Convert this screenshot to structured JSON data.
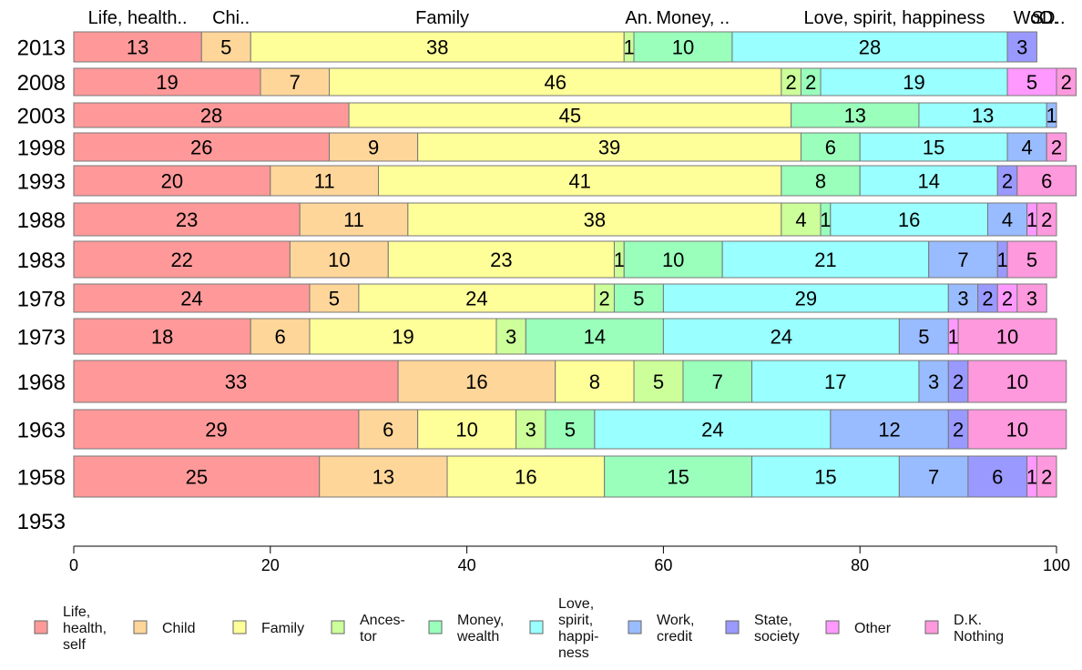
{
  "chart_data": {
    "type": "bar",
    "orientation": "horizontal",
    "stacked": true,
    "categories": [
      "2013",
      "2008",
      "2003",
      "1998",
      "1993",
      "1988",
      "1983",
      "1978",
      "1973",
      "1968",
      "1963",
      "1958",
      "1953"
    ],
    "top_labels": [
      "Life, health..",
      "Chi..",
      "Family",
      "An.",
      "Money, ..",
      "Love, spirit, happiness",
      "Wo..",
      "S..",
      "O.",
      "D.."
    ],
    "series": [
      {
        "name": "Life, health, self",
        "legend_lines": [
          "Life,",
          "health,",
          "self"
        ],
        "color": "#FF9999",
        "values": [
          13,
          19,
          28,
          26,
          20,
          23,
          22,
          24,
          18,
          33,
          29,
          25,
          null
        ]
      },
      {
        "name": "Child",
        "legend_lines": [
          "Child"
        ],
        "color": "#FFD699",
        "values": [
          5,
          7,
          0,
          9,
          11,
          11,
          10,
          5,
          6,
          16,
          6,
          13,
          null
        ]
      },
      {
        "name": "Family",
        "legend_lines": [
          "Family"
        ],
        "color": "#FFFF99",
        "values": [
          38,
          46,
          45,
          39,
          41,
          38,
          23,
          24,
          19,
          8,
          10,
          16,
          null
        ]
      },
      {
        "name": "Ancestor",
        "legend_lines": [
          "Ances-",
          "tor"
        ],
        "color": "#CCFF99",
        "values": [
          1,
          2,
          0,
          0,
          0,
          4,
          1,
          2,
          3,
          5,
          3,
          0,
          null
        ]
      },
      {
        "name": "Money, wealth",
        "legend_lines": [
          "Money,",
          "wealth"
        ],
        "color": "#99FFBB",
        "values": [
          10,
          2,
          13,
          6,
          8,
          1,
          10,
          5,
          14,
          7,
          5,
          15,
          null
        ]
      },
      {
        "name": "Love, spirit, happiness",
        "legend_lines": [
          "Love,",
          "spirit,",
          "happi-",
          "ness"
        ],
        "color": "#99FFFF",
        "values": [
          28,
          19,
          13,
          15,
          14,
          16,
          21,
          29,
          24,
          17,
          24,
          15,
          null
        ]
      },
      {
        "name": "Work, credit",
        "legend_lines": [
          "Work,",
          "credit"
        ],
        "color": "#99BBFF",
        "values": [
          0,
          0,
          1,
          4,
          0,
          4,
          7,
          3,
          5,
          3,
          12,
          7,
          null
        ]
      },
      {
        "name": "State, society",
        "legend_lines": [
          "State,",
          "society"
        ],
        "color": "#9999FF",
        "values": [
          3,
          0,
          0,
          0,
          2,
          0,
          1,
          2,
          0,
          2,
          2,
          6,
          null
        ]
      },
      {
        "name": "Other",
        "legend_lines": [
          "Other"
        ],
        "color": "#FF99FF",
        "values": [
          0,
          5,
          0,
          0,
          0,
          1,
          0,
          2,
          1,
          0,
          0,
          1,
          null
        ]
      },
      {
        "name": "D.K. Nothing",
        "legend_lines": [
          "D.K.",
          "Nothing"
        ],
        "color": "#FF99DD",
        "values": [
          0,
          2,
          0,
          2,
          6,
          2,
          5,
          3,
          10,
          10,
          10,
          2,
          null
        ]
      }
    ],
    "label_overrides": {
      "2013": [
        null,
        null,
        null,
        null,
        null,
        null,
        null,
        null,
        null,
        null
      ],
      "2003": [
        null,
        null,
        null,
        null,
        null,
        null,
        "",
        null,
        null,
        null
      ]
    },
    "xlim": [
      0,
      100
    ],
    "xticks": [
      0,
      20,
      40,
      60,
      80,
      100
    ],
    "xlabel": "",
    "ylabel": "",
    "grid": false,
    "legend_position": "bottom"
  }
}
